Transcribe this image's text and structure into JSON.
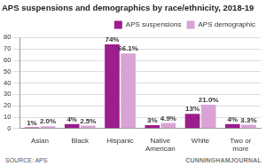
{
  "chart_data": {
    "type": "bar",
    "title": "APS suspensions and demographics by race/ethnicity, 2018-19",
    "source": "SOURCE: APS",
    "credit": "CUNNINGHAMJOURNAL",
    "categories": [
      "Asian",
      "Black",
      "Hispanic",
      "Native American",
      "White",
      "Two or more"
    ],
    "series": [
      {
        "name": "APS suspensions",
        "color": "#9c1d8c",
        "values": [
          1,
          4,
          74,
          3,
          13,
          4
        ],
        "value_labels": [
          "1%",
          "4%",
          "74%",
          "3%",
          "13%",
          "4%"
        ]
      },
      {
        "name": "APS demographic",
        "color": "#d9a3d5",
        "values": [
          2.0,
          2.5,
          66.1,
          4.9,
          21.0,
          3.3
        ],
        "value_labels": [
          "2.0%",
          "2.5%",
          "66.1%",
          "4.9%",
          "21.0%",
          "3.3%"
        ]
      }
    ],
    "ylim": [
      0,
      80
    ],
    "yticks": [
      0,
      10,
      20,
      30,
      40,
      50,
      60,
      70,
      80
    ],
    "grid": true,
    "legend": "top-right",
    "data_labels": true
  }
}
